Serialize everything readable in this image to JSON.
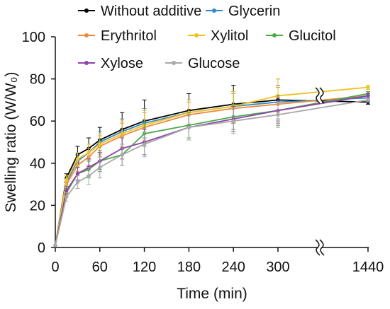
{
  "chart_data": {
    "type": "line",
    "xlabel": "Time (min)",
    "ylabel": "Swelling ratio (W/W₀)",
    "ylim": [
      0,
      100
    ],
    "yticks": [
      0,
      20,
      40,
      60,
      80,
      100
    ],
    "xticks": [
      "0",
      "60",
      "120",
      "180",
      "240",
      "300",
      "1440"
    ],
    "x_axis_break": "between 300 and 1440",
    "x": [
      0,
      15,
      30,
      45,
      60,
      90,
      120,
      180,
      240,
      300,
      1440
    ],
    "legend_placement": "top-left, 3 rows",
    "series": [
      {
        "name": "Without additive",
        "color": "#000000",
        "values": [
          1,
          33,
          44,
          47,
          51,
          56,
          60,
          65,
          68,
          70,
          69
        ],
        "errors": [
          0,
          2,
          4,
          5,
          6,
          8,
          10,
          8,
          9,
          10,
          1
        ]
      },
      {
        "name": "Glycerin",
        "color": "#2e8bc9",
        "values": [
          1,
          31,
          41,
          45,
          50,
          55,
          59,
          64,
          67,
          69,
          71
        ],
        "errors": [
          0,
          2,
          3,
          4,
          5,
          6,
          7,
          6,
          7,
          8,
          1
        ]
      },
      {
        "name": "Erythritol",
        "color": "#f08a3a",
        "values": [
          1,
          30,
          39,
          43,
          48,
          53,
          57,
          63,
          66,
          68,
          72
        ],
        "errors": [
          0,
          2,
          3,
          4,
          5,
          6,
          7,
          6,
          7,
          8,
          1
        ]
      },
      {
        "name": "Xylitol",
        "color": "#f2c21b",
        "values": [
          1,
          32,
          42,
          45,
          49,
          54,
          58,
          64,
          67,
          72,
          76
        ],
        "errors": [
          0,
          2,
          3,
          4,
          5,
          6,
          7,
          6,
          7,
          8,
          1
        ]
      },
      {
        "name": "Glucitol",
        "color": "#4aab45",
        "values": [
          1,
          26,
          35,
          37,
          41,
          44,
          54,
          58,
          62,
          65,
          73
        ],
        "errors": [
          0,
          2,
          3,
          4,
          5,
          5,
          6,
          6,
          6,
          7,
          1
        ]
      },
      {
        "name": "Xylose",
        "color": "#8e44ad",
        "values": [
          1,
          27,
          35,
          38,
          41,
          47,
          50,
          57,
          61,
          65,
          72
        ],
        "errors": [
          0,
          2,
          3,
          4,
          4,
          5,
          6,
          6,
          6,
          6,
          1
        ]
      },
      {
        "name": "Glucose",
        "color": "#a8a8a8",
        "values": [
          1,
          24,
          31,
          34,
          38,
          44,
          49,
          57,
          60,
          63,
          70
        ],
        "errors": [
          0,
          2,
          3,
          4,
          5,
          5,
          6,
          6,
          6,
          6,
          1
        ]
      }
    ]
  }
}
